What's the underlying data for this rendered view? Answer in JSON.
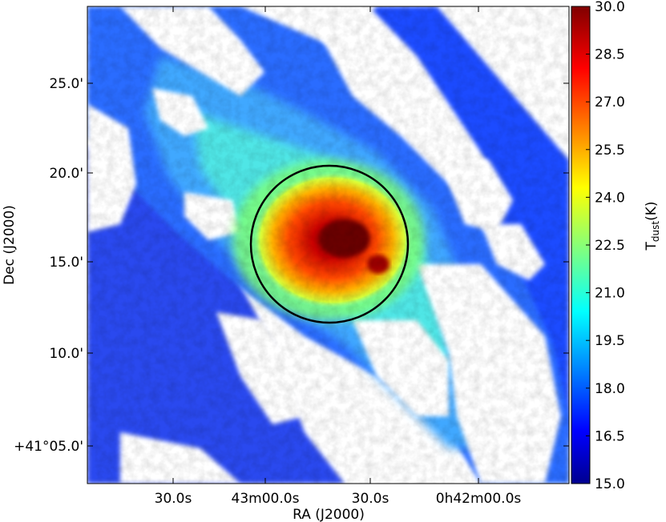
{
  "figure": {
    "xlabel": "RA (J2000)",
    "ylabel": "Dec (J2000)",
    "x_ticks": [
      "30.0s",
      "43m00.0s",
      "30.0s",
      "0h42m00.0s"
    ],
    "y_ticks": [
      "+41°05.0'",
      "10.0'",
      "15.0'",
      "20.0'",
      "25.0'"
    ],
    "colorbar": {
      "label_main": "T",
      "label_sub": "dust",
      "label_unit": "(K)",
      "ticks": [
        "15.0",
        "16.5",
        "18.0",
        "19.5",
        "21.0",
        "22.5",
        "24.0",
        "25.5",
        "27.0",
        "28.5",
        "30.0"
      ],
      "range": [
        15.0,
        30.0
      ],
      "colormap": "jet"
    },
    "overlay": "black-circle"
  }
}
